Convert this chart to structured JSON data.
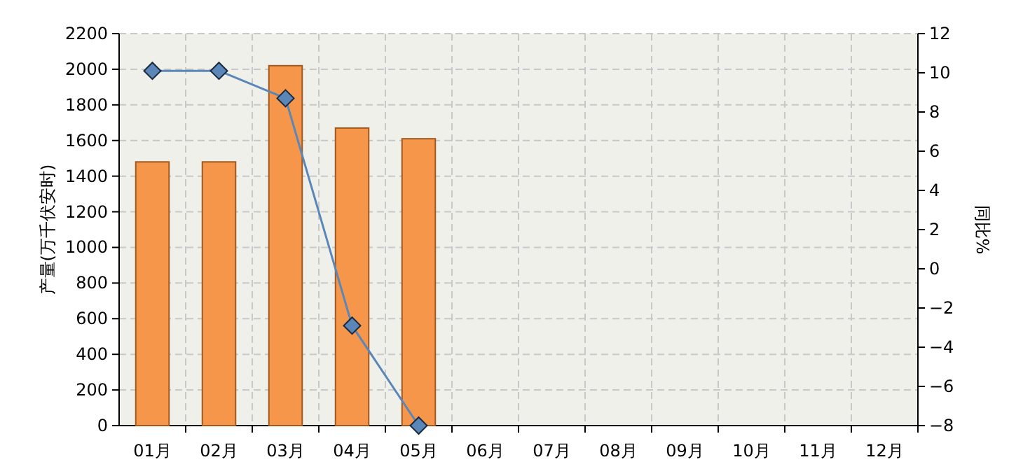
{
  "chart_data": {
    "type": "bar",
    "ylabel": "产量(万千伏安时)",
    "y2label": "同比%",
    "categories": [
      "01月",
      "02月",
      "03月",
      "04月",
      "05月",
      "06月",
      "07月",
      "08月",
      "09月",
      "10月",
      "11月",
      "12月"
    ],
    "series": [
      {
        "color": "#f5964a",
        "values": [
          1480,
          1480,
          2020,
          1670,
          1610,
          null,
          null,
          null,
          null,
          null,
          null,
          null
        ]
      },
      {
        "type": "line",
        "axis": "y2",
        "color": "#5b86b8",
        "marker": "diamond",
        "values": [
          10.1,
          10.1,
          8.7,
          -2.9,
          -8.0,
          null,
          null,
          null,
          null,
          null,
          null,
          null
        ]
      }
    ],
    "ylim": [
      0,
      2200
    ],
    "yticks": [
      0,
      200,
      400,
      600,
      800,
      1000,
      1200,
      1400,
      1600,
      1800,
      2000,
      2200
    ],
    "y2lim": [
      -8,
      12
    ],
    "y2ticks": [
      -8,
      -6,
      -4,
      -2,
      0,
      2,
      4,
      6,
      8,
      10,
      12
    ],
    "grid": true
  }
}
